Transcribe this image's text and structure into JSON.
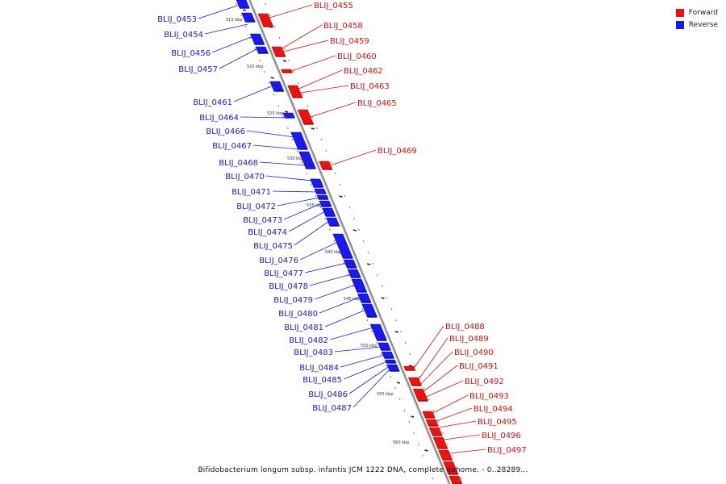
{
  "legend": {
    "forward_label": "Forward",
    "reverse_label": "Reverse",
    "forward_color": "#ee1111",
    "reverse_color": "#1a1aee"
  },
  "caption": "Bifidobacterium longum subsp. infantis JCM 1222 DNA, complete genome. - 0..28289...",
  "colors": {
    "backbone": "#8a8a8a",
    "forward_label": "#cc1111",
    "reverse_label": "#1a1acc"
  },
  "scale_ticks": [
    {
      "kbp": 515,
      "label": "515 kbp"
    },
    {
      "kbp": 520,
      "label": "520 kbp"
    },
    {
      "kbp": 525,
      "label": "525 kbp"
    },
    {
      "kbp": 530,
      "label": "530 kbp"
    },
    {
      "kbp": 535,
      "label": "535 kbp"
    },
    {
      "kbp": 540,
      "label": "540 kbp"
    },
    {
      "kbp": 545,
      "label": "545 kbp"
    },
    {
      "kbp": 550,
      "label": "550 kbp"
    },
    {
      "kbp": 555,
      "label": "555 kbp"
    },
    {
      "kbp": 560,
      "label": "560 kbp"
    }
  ],
  "reverse_genes": [
    "BLIJ_0453",
    "BLIJ_0454",
    "BLIJ_0456",
    "BLIJ_0457",
    "BLIJ_0461",
    "BLIJ_0464",
    "BLIJ_0466",
    "BLIJ_0467",
    "BLIJ_0468",
    "BLIJ_0470",
    "BLIJ_0471",
    "BLIJ_0472",
    "BLIJ_0473",
    "BLIJ_0474",
    "BLIJ_0475",
    "BLIJ_0476",
    "BLIJ_0477",
    "BLIJ_0478",
    "BLIJ_0479",
    "BLIJ_0480",
    "BLIJ_0481",
    "BLIJ_0482",
    "BLIJ_0483",
    "BLIJ_0484",
    "BLIJ_0485",
    "BLIJ_0486",
    "BLIJ_0487"
  ],
  "forward_genes": [
    "BLIJ_0455",
    "BLIJ_0458",
    "BLIJ_0459",
    "BLIJ_0460",
    "BLIJ_0462",
    "BLIJ_0463",
    "BLIJ_0465",
    "BLIJ_0469",
    "BLIJ_0488",
    "BLIJ_0489",
    "BLIJ_0490",
    "BLIJ_0491",
    "BLIJ_0492",
    "BLIJ_0493",
    "BLIJ_0494",
    "BLIJ_0495",
    "BLIJ_0496",
    "BLIJ_0497"
  ]
}
